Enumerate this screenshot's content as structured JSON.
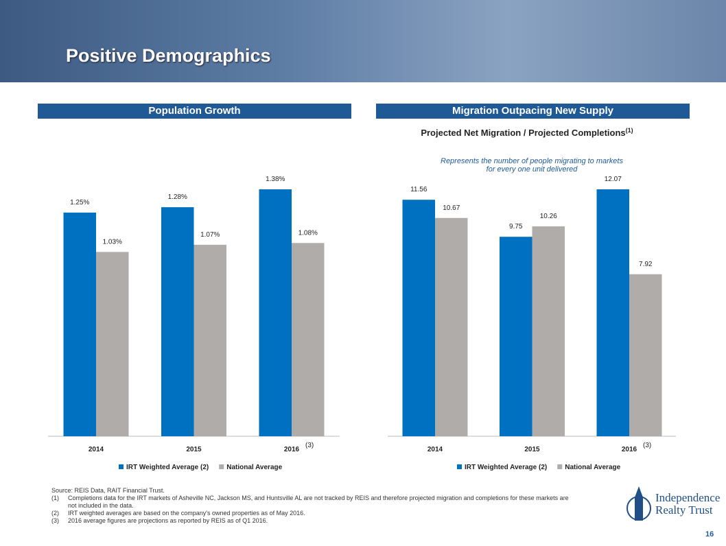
{
  "header": {
    "title": "Positive Demographics"
  },
  "sections": [
    "Population Growth",
    "Migration Outpacing New Supply"
  ],
  "chart_data": [
    {
      "type": "bar",
      "categories": [
        "2014",
        "2015",
        "2016"
      ],
      "annotation": "(3)",
      "series": [
        {
          "name": "IRT Weighted Average (2)",
          "color": "#0070c0",
          "values": [
            1.25,
            1.28,
            1.38
          ],
          "value_labels": [
            "1.25%",
            "1.28%",
            "1.38%"
          ]
        },
        {
          "name": "National Average",
          "color": "#b0aca9",
          "values": [
            1.03,
            1.07,
            1.08
          ],
          "value_labels": [
            "1.03%",
            "1.07%",
            "1.08%"
          ]
        }
      ]
    },
    {
      "type": "bar",
      "title": "Projected Net Migration / Projected Completions",
      "title_note": "(1)",
      "subtitle": "Represents the number of people migrating to markets for every one unit delivered",
      "categories": [
        "2014",
        "2015",
        "2016"
      ],
      "annotation": "(3)",
      "series": [
        {
          "name": "IRT Weighted Average (2)",
          "color": "#0070c0",
          "values": [
            11.56,
            9.75,
            12.07
          ]
        },
        {
          "name": "National Average",
          "color": "#b0aca9",
          "values": [
            10.67,
            10.26,
            7.92
          ]
        }
      ]
    }
  ],
  "footnotes": {
    "source": "Source: REIS Data, RAIT Financial Trust.",
    "notes": [
      {
        "marker": "(1)",
        "text": "Completions data for the IRT markets of Asheville NC, Jackson MS, and Huntsville AL are not tracked by REIS and therefore projected migration and completions for these markets are not included in the data."
      },
      {
        "marker": "(2)",
        "text": "IRT weighted averages are based on the company's owned properties as of May 2016."
      },
      {
        "marker": "(3)",
        "text": "2016 average figures are projections as reported by REIS as of Q1 2016."
      }
    ]
  },
  "logo": {
    "line1": "Independence",
    "line2": "Realty Trust"
  },
  "page_number": "16"
}
